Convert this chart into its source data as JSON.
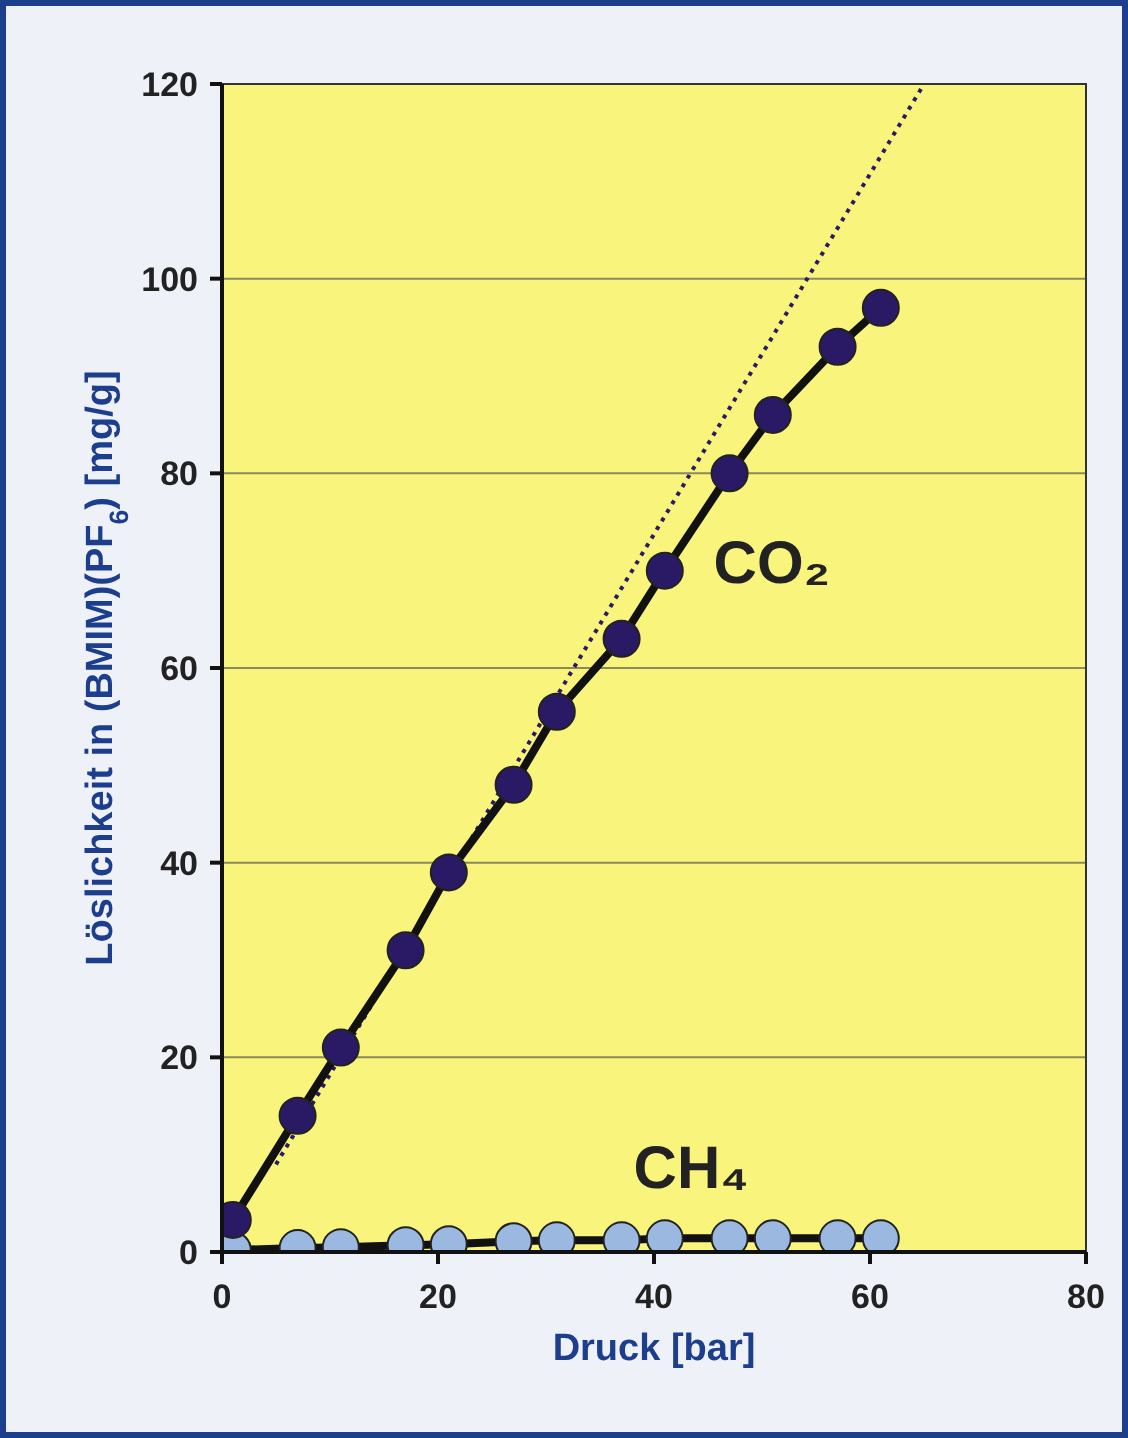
{
  "chart_data": {
    "type": "line",
    "xlabel": "Druck [bar]",
    "ylabel": "Löslichkeit in (BMIM)(PF$_{6}$) [mg/g]",
    "xlim": [
      0,
      80
    ],
    "xticks": [
      0,
      20,
      40,
      60,
      80
    ],
    "ylim": [
      0,
      120
    ],
    "yticks": [
      0,
      20,
      40,
      60,
      80,
      100,
      120
    ],
    "grid": "y",
    "marker": "circle",
    "line_style": "solid",
    "series": [
      {
        "name": "CO₂",
        "color": "#2a1a66",
        "x": [
          1,
          7,
          11,
          17,
          21,
          27,
          31,
          37,
          41,
          47,
          51,
          57,
          61
        ],
        "values": [
          3.3,
          14,
          21,
          31,
          39,
          48,
          55.5,
          63,
          70,
          80,
          86,
          93,
          97
        ]
      },
      {
        "name": "CH₄",
        "color": "#9ab8e0",
        "x": [
          1,
          7,
          11,
          17,
          21,
          27,
          31,
          37,
          41,
          47,
          51,
          57,
          61
        ],
        "values": [
          0.2,
          0.4,
          0.5,
          0.7,
          0.8,
          1.1,
          1.2,
          1.2,
          1.4,
          1.4,
          1.4,
          1.4,
          1.4
        ]
      },
      {
        "type": "line",
        "color": "#2a1a66",
        "line_style": "dotted",
        "marker": "none",
        "x": [
          5,
          65
        ],
        "values": [
          9,
          120
        ]
      }
    ]
  }
}
